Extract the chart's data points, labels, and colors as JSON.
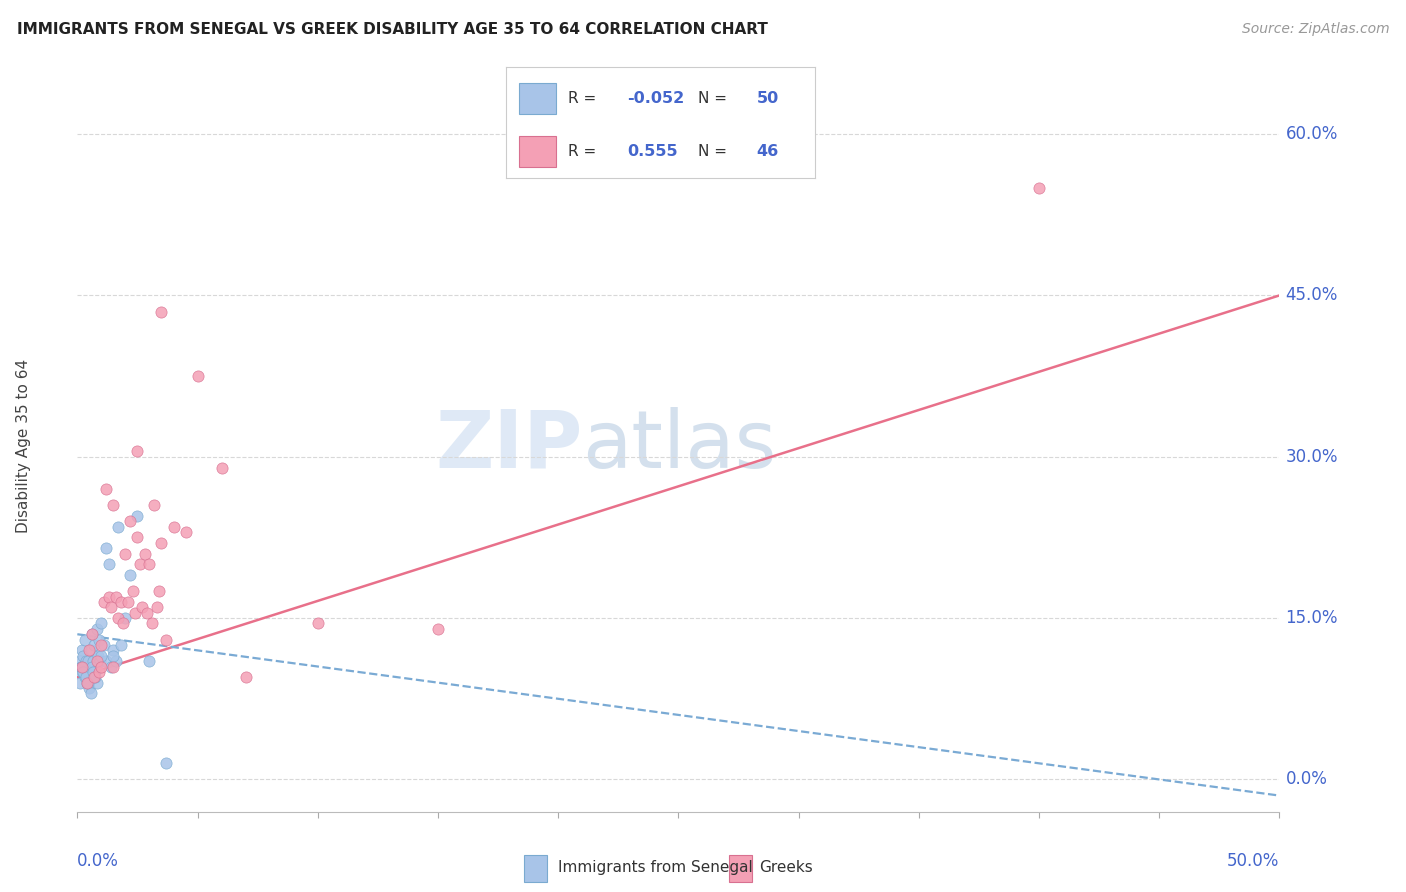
{
  "title": "IMMIGRANTS FROM SENEGAL VS GREEK DISABILITY AGE 35 TO 64 CORRELATION CHART",
  "source": "Source: ZipAtlas.com",
  "ylabel": "Disability Age 35 to 64",
  "ytick_labels": [
    "0.0%",
    "15.0%",
    "30.0%",
    "45.0%",
    "60.0%"
  ],
  "ytick_values": [
    0.0,
    15.0,
    30.0,
    45.0,
    60.0
  ],
  "xlim": [
    0.0,
    50.0
  ],
  "ylim": [
    -3.0,
    65.0
  ],
  "legend_label1": "Immigrants from Senegal",
  "legend_label2": "Greeks",
  "R1": "-0.052",
  "N1": "50",
  "R2": "0.555",
  "N2": "46",
  "color_blue": "#a8c4e8",
  "color_pink": "#f4a0b5",
  "color_blue_line": "#7aaad4",
  "color_pink_line": "#e8708a",
  "color_axis_labels": "#4466cc",
  "blue_dots_x": [
    0.1,
    0.15,
    0.2,
    0.25,
    0.3,
    0.35,
    0.4,
    0.45,
    0.5,
    0.55,
    0.6,
    0.65,
    0.7,
    0.75,
    0.8,
    0.85,
    0.9,
    0.95,
    1.0,
    1.1,
    1.2,
    1.3,
    1.4,
    1.5,
    1.6,
    1.7,
    1.8,
    2.0,
    2.2,
    2.5,
    3.0,
    0.1,
    0.2,
    0.3,
    0.4,
    0.5,
    0.6,
    0.7,
    0.8,
    1.0,
    1.2,
    1.5,
    0.15,
    0.25,
    0.35,
    0.45,
    0.55,
    0.65,
    0.75,
    3.7
  ],
  "blue_dots_y": [
    11.0,
    10.5,
    12.0,
    11.5,
    13.0,
    11.0,
    10.0,
    11.0,
    9.5,
    12.0,
    13.5,
    11.0,
    12.5,
    10.0,
    14.0,
    11.5,
    13.0,
    11.0,
    14.5,
    12.5,
    11.0,
    20.0,
    10.5,
    12.0,
    11.0,
    23.5,
    12.5,
    15.0,
    19.0,
    24.5,
    11.0,
    9.0,
    10.0,
    9.5,
    9.0,
    8.5,
    10.5,
    10.0,
    9.0,
    11.5,
    21.5,
    11.5,
    10.5,
    10.0,
    9.5,
    9.0,
    8.0,
    10.0,
    9.5,
    1.5
  ],
  "pink_dots_x": [
    0.2,
    0.4,
    0.5,
    0.6,
    0.7,
    0.8,
    0.9,
    1.0,
    1.1,
    1.2,
    1.3,
    1.4,
    1.5,
    1.6,
    1.7,
    1.8,
    1.9,
    2.0,
    2.1,
    2.2,
    2.3,
    2.4,
    2.5,
    2.6,
    2.7,
    2.8,
    2.9,
    3.0,
    3.1,
    3.2,
    3.3,
    3.4,
    3.5,
    3.7,
    4.0,
    4.5,
    5.0,
    6.0,
    7.0,
    10.0,
    15.0,
    40.0,
    1.0,
    1.5,
    2.5,
    3.5
  ],
  "pink_dots_y": [
    10.5,
    9.0,
    12.0,
    13.5,
    9.5,
    11.0,
    10.0,
    12.5,
    16.5,
    27.0,
    17.0,
    16.0,
    25.5,
    17.0,
    15.0,
    16.5,
    14.5,
    21.0,
    16.5,
    24.0,
    17.5,
    15.5,
    22.5,
    20.0,
    16.0,
    21.0,
    15.5,
    20.0,
    14.5,
    25.5,
    16.0,
    17.5,
    22.0,
    13.0,
    23.5,
    23.0,
    37.5,
    29.0,
    9.5,
    14.5,
    14.0,
    55.0,
    10.5,
    10.5,
    30.5,
    43.5
  ],
  "grid_color": "#d8d8d8",
  "pink_line_x0": 0.0,
  "pink_line_y0": 9.5,
  "pink_line_x1": 50.0,
  "pink_line_y1": 45.0,
  "blue_line_x0": 0.0,
  "blue_line_y0": 13.5,
  "blue_line_x1": 50.0,
  "blue_line_y1": -1.5
}
